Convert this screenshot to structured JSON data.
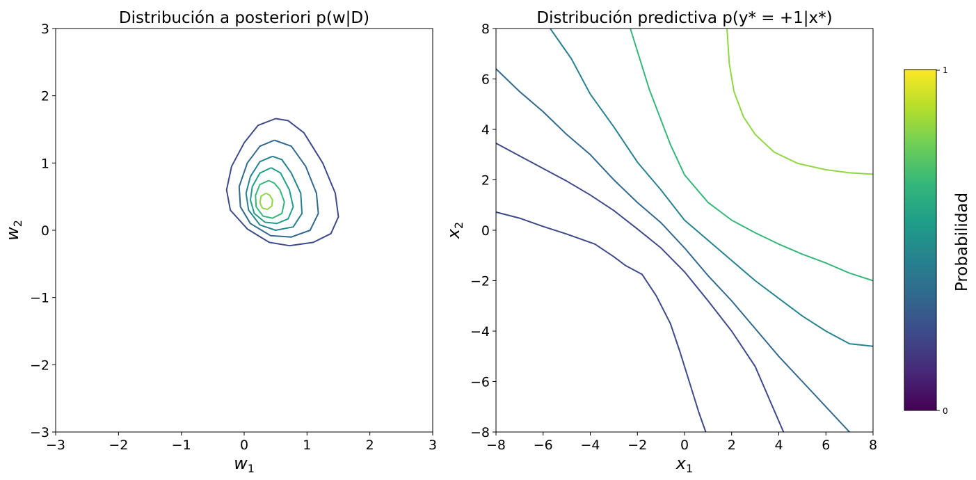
{
  "chart_data": [
    {
      "type": "contour",
      "title": "Distribución a posteriori p(w|D)",
      "xlabel": "w1",
      "ylabel": "w2",
      "xlim": [
        -3,
        3
      ],
      "ylim": [
        -3,
        3
      ],
      "xticks": [
        "−3",
        "−2",
        "−1",
        "0",
        "1",
        "2",
        "3"
      ],
      "yticks": [
        "−3",
        "−2",
        "−1",
        "0",
        "1",
        "2",
        "3"
      ],
      "grid": false,
      "levels": [
        {
          "color": "#3e4989",
          "points": [
            [
              0.5,
              1.66
            ],
            [
              0.22,
              1.56
            ],
            [
              0.0,
              1.3
            ],
            [
              -0.2,
              0.95
            ],
            [
              -0.28,
              0.6
            ],
            [
              -0.22,
              0.3
            ],
            [
              0.05,
              0.02
            ],
            [
              0.4,
              -0.18
            ],
            [
              0.72,
              -0.23
            ],
            [
              1.1,
              -0.18
            ],
            [
              1.38,
              -0.05
            ],
            [
              1.5,
              0.2
            ],
            [
              1.45,
              0.55
            ],
            [
              1.25,
              1.0
            ],
            [
              0.95,
              1.45
            ],
            [
              0.7,
              1.63
            ],
            [
              0.5,
              1.66
            ]
          ]
        },
        {
          "color": "#31688e",
          "points": [
            [
              0.48,
              1.34
            ],
            [
              0.25,
              1.25
            ],
            [
              0.05,
              1.0
            ],
            [
              -0.08,
              0.65
            ],
            [
              -0.06,
              0.35
            ],
            [
              0.1,
              0.1
            ],
            [
              0.42,
              -0.08
            ],
            [
              0.75,
              -0.1
            ],
            [
              1.05,
              0.0
            ],
            [
              1.18,
              0.25
            ],
            [
              1.15,
              0.55
            ],
            [
              0.98,
              0.95
            ],
            [
              0.75,
              1.25
            ],
            [
              0.48,
              1.34
            ]
          ]
        },
        {
          "color": "#26828e",
          "points": [
            [
              0.45,
              1.1
            ],
            [
              0.25,
              1.02
            ],
            [
              0.1,
              0.8
            ],
            [
              0.03,
              0.55
            ],
            [
              0.07,
              0.3
            ],
            [
              0.25,
              0.08
            ],
            [
              0.5,
              0.0
            ],
            [
              0.78,
              0.05
            ],
            [
              0.92,
              0.25
            ],
            [
              0.9,
              0.55
            ],
            [
              0.75,
              0.85
            ],
            [
              0.6,
              1.05
            ],
            [
              0.45,
              1.1
            ]
          ]
        },
        {
          "color": "#1f9e89",
          "points": [
            [
              0.43,
              0.93
            ],
            [
              0.25,
              0.85
            ],
            [
              0.13,
              0.65
            ],
            [
              0.1,
              0.45
            ],
            [
              0.16,
              0.25
            ],
            [
              0.33,
              0.12
            ],
            [
              0.52,
              0.1
            ],
            [
              0.7,
              0.17
            ],
            [
              0.78,
              0.35
            ],
            [
              0.72,
              0.6
            ],
            [
              0.58,
              0.85
            ],
            [
              0.43,
              0.93
            ]
          ]
        },
        {
          "color": "#35b779",
          "points": [
            [
              0.39,
              0.74
            ],
            [
              0.25,
              0.68
            ],
            [
              0.18,
              0.52
            ],
            [
              0.19,
              0.35
            ],
            [
              0.3,
              0.21
            ],
            [
              0.45,
              0.18
            ],
            [
              0.6,
              0.25
            ],
            [
              0.64,
              0.42
            ],
            [
              0.57,
              0.6
            ],
            [
              0.48,
              0.7
            ],
            [
              0.39,
              0.74
            ]
          ]
        },
        {
          "color": "#90d743",
          "points": [
            [
              0.35,
              0.55
            ],
            [
              0.27,
              0.51
            ],
            [
              0.25,
              0.41
            ],
            [
              0.29,
              0.33
            ],
            [
              0.37,
              0.31
            ],
            [
              0.44,
              0.36
            ],
            [
              0.45,
              0.45
            ],
            [
              0.41,
              0.52
            ],
            [
              0.35,
              0.55
            ]
          ]
        }
      ]
    },
    {
      "type": "contour",
      "title": "Distribución predictiva p(y* = +1|x*)",
      "xlabel": "x1",
      "ylabel": "x2",
      "xlim": [
        -8,
        8
      ],
      "ylim": [
        -8,
        8
      ],
      "xticks": [
        "−8",
        "−6",
        "−4",
        "−2",
        "0",
        "2",
        "4",
        "6",
        "8"
      ],
      "yticks": [
        "−8",
        "−6",
        "−4",
        "−2",
        "0",
        "2",
        "4",
        "6",
        "8"
      ],
      "grid": false,
      "levels": [
        {
          "color": "#3e4989",
          "points": [
            [
              -8,
              0.72
            ],
            [
              -7,
              0.48
            ],
            [
              -6,
              0.15
            ],
            [
              -5,
              -0.15
            ],
            [
              -4.4,
              -0.35
            ],
            [
              -3.8,
              -0.55
            ],
            [
              -3,
              -1.05
            ],
            [
              -2.5,
              -1.4
            ],
            [
              -1.8,
              -1.75
            ],
            [
              -1.2,
              -2.6
            ],
            [
              -0.6,
              -3.7
            ],
            [
              -0.2,
              -4.8
            ],
            [
              0.2,
              -6
            ],
            [
              0.6,
              -7.2
            ],
            [
              0.9,
              -8
            ]
          ]
        },
        {
          "color": "#3e4989",
          "points": [
            [
              -8,
              3.45
            ],
            [
              -7,
              2.95
            ],
            [
              -6,
              2.45
            ],
            [
              -5,
              1.95
            ],
            [
              -4,
              1.4
            ],
            [
              -3,
              0.78
            ],
            [
              -2,
              0.05
            ],
            [
              -1,
              -0.7
            ],
            [
              0,
              -1.65
            ],
            [
              1,
              -2.8
            ],
            [
              2,
              -4.0
            ],
            [
              3,
              -5.4
            ],
            [
              4.2,
              -8
            ]
          ]
        },
        {
          "color": "#31688e",
          "points": [
            [
              -8,
              6.4
            ],
            [
              -7,
              5.5
            ],
            [
              -6,
              4.7
            ],
            [
              -5,
              3.8
            ],
            [
              -4,
              3.0
            ],
            [
              -3,
              2.0
            ],
            [
              -2,
              1.1
            ],
            [
              -1,
              0.3
            ],
            [
              0,
              -0.7
            ],
            [
              1,
              -1.8
            ],
            [
              2,
              -2.8
            ],
            [
              3,
              -3.9
            ],
            [
              4,
              -5.0
            ],
            [
              5,
              -6.0
            ],
            [
              6,
              -7.0
            ],
            [
              7,
              -8
            ]
          ]
        },
        {
          "color": "#26828e",
          "points": [
            [
              -5.7,
              8
            ],
            [
              -4.8,
              6.8
            ],
            [
              -4,
              5.4
            ],
            [
              -3,
              4.1
            ],
            [
              -2,
              2.7
            ],
            [
              -1,
              1.6
            ],
            [
              0,
              0.4
            ],
            [
              1,
              -0.4
            ],
            [
              2,
              -1.2
            ],
            [
              3,
              -2.0
            ],
            [
              4,
              -2.7
            ],
            [
              5,
              -3.4
            ],
            [
              6,
              -4.0
            ],
            [
              7,
              -4.5
            ],
            [
              8,
              -4.6
            ]
          ]
        },
        {
          "color": "#35b779",
          "points": [
            [
              -2.3,
              8
            ],
            [
              -1.5,
              5.6
            ],
            [
              -0.6,
              3.4
            ],
            [
              0,
              2.2
            ],
            [
              1,
              1.1
            ],
            [
              2,
              0.4
            ],
            [
              3,
              -0.1
            ],
            [
              4,
              -0.55
            ],
            [
              5,
              -0.95
            ],
            [
              6,
              -1.3
            ],
            [
              7,
              -1.7
            ],
            [
              8,
              -2.0
            ]
          ]
        },
        {
          "color": "#90d743",
          "points": [
            [
              1.8,
              8
            ],
            [
              1.9,
              6.6
            ],
            [
              2.1,
              5.5
            ],
            [
              2.5,
              4.5
            ],
            [
              3,
              3.8
            ],
            [
              3.8,
              3.1
            ],
            [
              4.8,
              2.65
            ],
            [
              6,
              2.4
            ],
            [
              7,
              2.28
            ],
            [
              8,
              2.22
            ]
          ]
        }
      ]
    }
  ],
  "colorbar": {
    "label": "Probabilidad",
    "min_label": "0",
    "max_label": "1",
    "colors": [
      "#440154",
      "#482878",
      "#3e4989",
      "#31688e",
      "#26828e",
      "#1f9e89",
      "#35b779",
      "#6ece58",
      "#b5de2b",
      "#fde725"
    ]
  }
}
